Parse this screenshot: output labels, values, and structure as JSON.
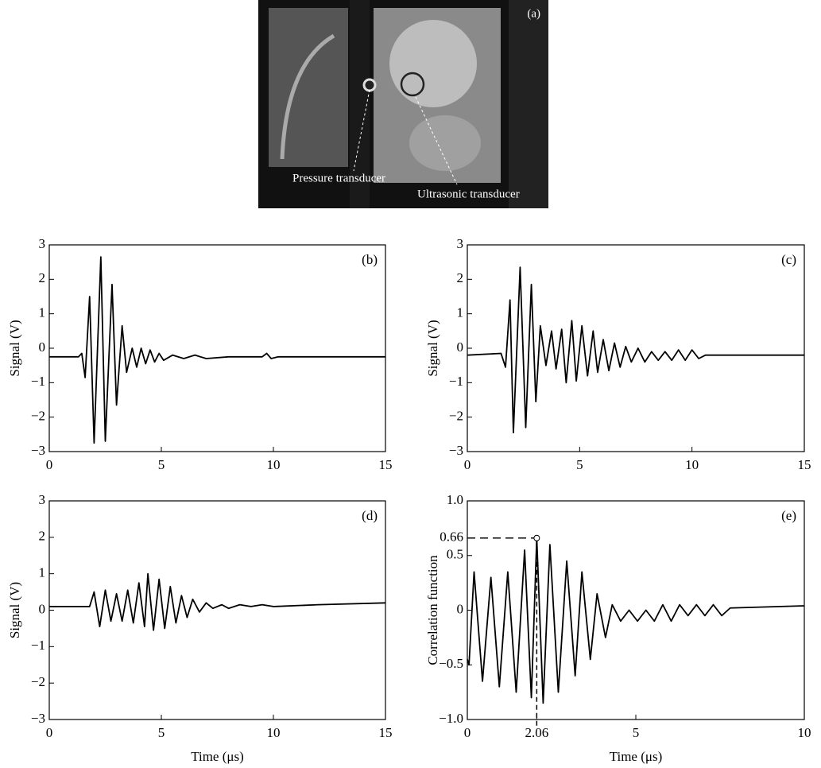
{
  "photo": {
    "label": "(a)",
    "annotations": [
      "Pressure transducer",
      "Ultrasonic transducer"
    ]
  },
  "chart_data": [
    {
      "type": "line",
      "panel": "(b)",
      "y_label": "Signal (V)",
      "color": "#000000",
      "xlim": [
        0,
        15
      ],
      "xticks": [
        0,
        5,
        10,
        15
      ],
      "ylim": [
        -3,
        3
      ],
      "yticks": [
        {
          "value": -3,
          "label": "−3"
        },
        {
          "value": -2,
          "label": "−2"
        },
        {
          "value": -1,
          "label": "−1"
        },
        0,
        1,
        2,
        3
      ],
      "x": [
        0,
        1.3,
        1.45,
        1.6,
        1.8,
        2.0,
        2.3,
        2.5,
        2.8,
        3.0,
        3.25,
        3.45,
        3.7,
        3.9,
        4.1,
        4.3,
        4.5,
        4.7,
        4.9,
        5.1,
        5.5,
        6,
        6.5,
        7,
        8,
        9.5,
        9.7,
        9.9,
        10.2,
        12,
        15
      ],
      "values": [
        -0.25,
        -0.25,
        -0.15,
        -0.85,
        1.5,
        -2.75,
        2.65,
        -2.7,
        1.85,
        -1.65,
        0.65,
        -0.7,
        0.0,
        -0.55,
        0.0,
        -0.45,
        -0.05,
        -0.4,
        -0.15,
        -0.35,
        -0.2,
        -0.3,
        -0.2,
        -0.3,
        -0.25,
        -0.25,
        -0.15,
        -0.3,
        -0.25,
        -0.25,
        -0.25
      ]
    },
    {
      "type": "line",
      "panel": "(c)",
      "y_label": "Signal (V)",
      "color": "#000000",
      "xlim": [
        0,
        15
      ],
      "xticks": [
        0,
        5,
        10,
        15
      ],
      "ylim": [
        -3,
        3
      ],
      "yticks": [
        {
          "value": -3,
          "label": "−3"
        },
        {
          "value": -2,
          "label": "−2"
        },
        {
          "value": -1,
          "label": "−1"
        },
        0,
        1,
        2,
        3
      ],
      "x": [
        0,
        1.5,
        1.7,
        1.9,
        2.05,
        2.35,
        2.6,
        2.85,
        3.05,
        3.25,
        3.5,
        3.75,
        3.95,
        4.2,
        4.4,
        4.65,
        4.85,
        5.1,
        5.35,
        5.6,
        5.8,
        6.05,
        6.3,
        6.55,
        6.8,
        7.05,
        7.3,
        7.6,
        7.9,
        8.2,
        8.5,
        8.8,
        9.1,
        9.4,
        9.7,
        10.0,
        10.3,
        10.6,
        15
      ],
      "values": [
        -0.2,
        -0.15,
        -0.55,
        1.4,
        -2.45,
        2.35,
        -2.3,
        1.85,
        -1.55,
        0.65,
        -0.5,
        0.5,
        -0.6,
        0.55,
        -1.0,
        0.8,
        -0.95,
        0.65,
        -0.8,
        0.5,
        -0.7,
        0.25,
        -0.65,
        0.15,
        -0.55,
        0.05,
        -0.4,
        0.0,
        -0.4,
        -0.1,
        -0.35,
        -0.1,
        -0.35,
        -0.05,
        -0.35,
        -0.05,
        -0.3,
        -0.2,
        -0.2
      ]
    },
    {
      "type": "line",
      "panel": "(d)",
      "y_label": "Signal (V)",
      "x_label": "Time (μs)",
      "color": "#000000",
      "xlim": [
        0,
        15
      ],
      "xticks": [
        0,
        5,
        10,
        15
      ],
      "ylim": [
        -3,
        3
      ],
      "yticks": [
        {
          "value": -3,
          "label": "−3"
        },
        {
          "value": -2,
          "label": "−2"
        },
        {
          "value": -1,
          "label": "−1"
        },
        0,
        1,
        2,
        3
      ],
      "x": [
        0,
        1.8,
        2.0,
        2.25,
        2.5,
        2.75,
        3.0,
        3.25,
        3.5,
        3.75,
        4.0,
        4.25,
        4.4,
        4.65,
        4.9,
        5.15,
        5.4,
        5.65,
        5.9,
        6.15,
        6.4,
        6.7,
        7,
        7.3,
        7.7,
        8,
        8.5,
        9,
        9.5,
        10,
        12,
        15
      ],
      "values": [
        0.1,
        0.1,
        0.5,
        -0.45,
        0.55,
        -0.3,
        0.45,
        -0.3,
        0.55,
        -0.35,
        0.75,
        -0.45,
        1.0,
        -0.55,
        0.85,
        -0.5,
        0.65,
        -0.35,
        0.4,
        -0.2,
        0.3,
        -0.05,
        0.2,
        0.05,
        0.15,
        0.05,
        0.15,
        0.1,
        0.15,
        0.1,
        0.15,
        0.2
      ]
    },
    {
      "type": "line",
      "panel": "(e)",
      "y_label": "Correlation function",
      "x_label": "Time (μs)",
      "color": "#000000",
      "xlim": [
        0,
        10
      ],
      "xticks": [
        0,
        2.06,
        5,
        10
      ],
      "ylim": [
        -1,
        1
      ],
      "yticks": [
        {
          "value": -1,
          "label": "−1.0"
        },
        {
          "value": -0.5,
          "label": "−0.5"
        },
        0,
        0.5,
        0.66,
        {
          "value": 1,
          "label": "1.0"
        }
      ],
      "highlight": {
        "x": 2.06,
        "y": 0.66
      },
      "x": [
        0,
        0.05,
        0.2,
        0.45,
        0.7,
        0.95,
        1.2,
        1.45,
        1.7,
        1.9,
        2.06,
        2.25,
        2.45,
        2.7,
        2.95,
        3.2,
        3.4,
        3.65,
        3.85,
        4.1,
        4.3,
        4.55,
        4.8,
        5.05,
        5.3,
        5.55,
        5.8,
        6.05,
        6.3,
        6.55,
        6.8,
        7.05,
        7.3,
        7.55,
        7.8,
        10
      ],
      "values": [
        -0.45,
        -0.5,
        0.35,
        -0.65,
        0.3,
        -0.7,
        0.35,
        -0.75,
        0.55,
        -0.8,
        0.66,
        -0.85,
        0.6,
        -0.75,
        0.45,
        -0.6,
        0.35,
        -0.45,
        0.15,
        -0.25,
        0.05,
        -0.1,
        0.0,
        -0.1,
        0.0,
        -0.1,
        0.05,
        -0.1,
        0.05,
        -0.05,
        0.05,
        -0.05,
        0.05,
        -0.05,
        0.02,
        0.04
      ]
    }
  ]
}
